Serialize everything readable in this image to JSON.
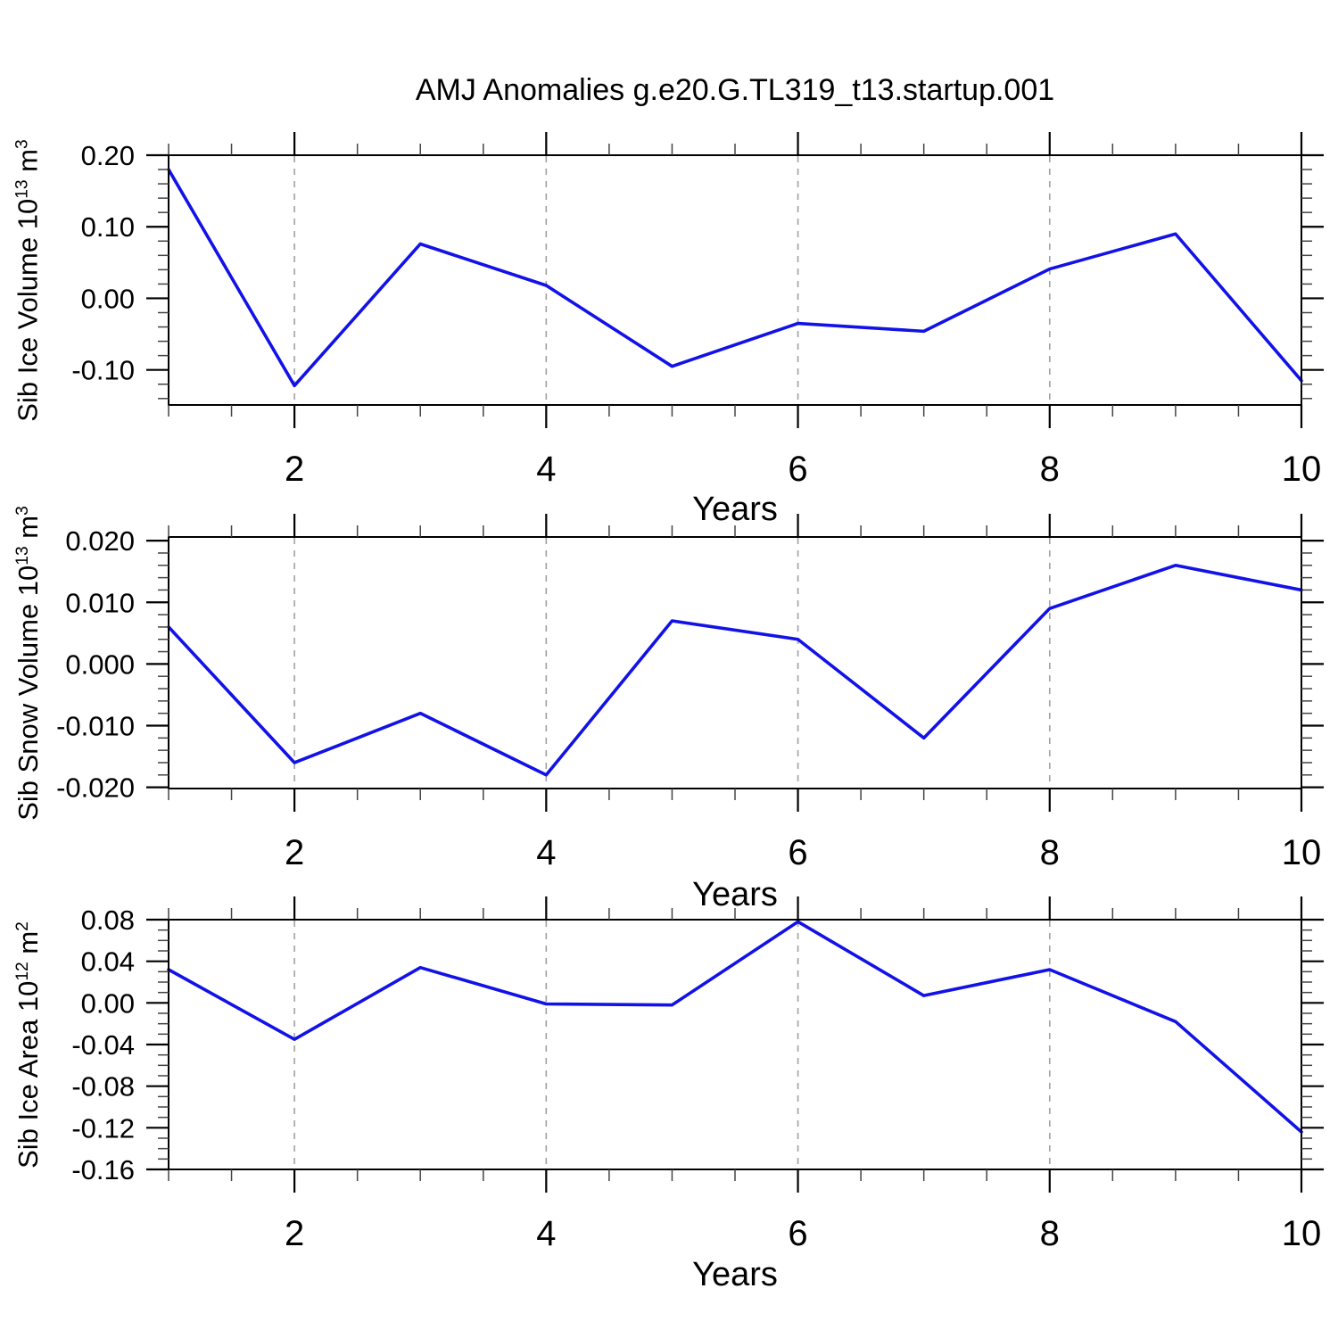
{
  "title": "AMJ Anomalies g.e20.G.TL319_t13.startup.001",
  "colors": {
    "line": "#1212e8",
    "grid": "#a0a0a0",
    "axis": "#000000",
    "minor_tick": "#444444",
    "text": "#000000"
  },
  "chart_data": [
    {
      "type": "line",
      "panel": "top",
      "ylabel": "Sib Ice Volume 10^13 m^3",
      "ylabel_parts": {
        "base": "Sib Ice Volume 10",
        "sup1": "13",
        "mid": " m",
        "sup2": "3"
      },
      "xlabel": "Years",
      "x": [
        1,
        2,
        3,
        4,
        5,
        6,
        7,
        8,
        9,
        10
      ],
      "values": [
        0.18,
        -0.122,
        0.076,
        0.018,
        -0.095,
        -0.035,
        -0.046,
        0.041,
        0.09,
        -0.115
      ],
      "xlim": [
        1,
        10
      ],
      "ylim": [
        -0.149,
        0.2
      ],
      "yticks": [
        {
          "v": 0.2,
          "label": "0.20"
        },
        {
          "v": 0.1,
          "label": "0.10"
        },
        {
          "v": 0.0,
          "label": "0.00"
        },
        {
          "v": -0.1,
          "label": "-0.10"
        }
      ],
      "yminor_step": 0.02,
      "xticks": [
        {
          "v": 2,
          "label": "2"
        },
        {
          "v": 4,
          "label": "4"
        },
        {
          "v": 6,
          "label": "6"
        },
        {
          "v": 8,
          "label": "8"
        },
        {
          "v": 10,
          "label": "10"
        }
      ],
      "xminor_step": 0.5,
      "grid_x": [
        2,
        4,
        6,
        8
      ],
      "grid": "vertical-dashed",
      "legend": "none"
    },
    {
      "type": "line",
      "panel": "middle",
      "ylabel": "Sib Snow Volume 10^13 m^3",
      "ylabel_parts": {
        "base": "Sib Snow Volume 10",
        "sup1": "13",
        "mid": " m",
        "sup2": "3"
      },
      "xlabel": "Years",
      "x": [
        1,
        2,
        3,
        4,
        5,
        6,
        7,
        8,
        9,
        10
      ],
      "values": [
        0.006,
        -0.016,
        -0.008,
        -0.018,
        0.007,
        0.004,
        -0.012,
        0.009,
        0.016,
        0.012
      ],
      "xlim": [
        1,
        10
      ],
      "ylim": [
        -0.0202,
        0.0206
      ],
      "yticks": [
        {
          "v": 0.02,
          "label": "0.020"
        },
        {
          "v": 0.01,
          "label": "0.010"
        },
        {
          "v": 0.0,
          "label": "0.000"
        },
        {
          "v": -0.01,
          "label": "-0.010"
        },
        {
          "v": -0.02,
          "label": "-0.020"
        }
      ],
      "yminor_step": 0.002,
      "xticks": [
        {
          "v": 2,
          "label": "2"
        },
        {
          "v": 4,
          "label": "4"
        },
        {
          "v": 6,
          "label": "6"
        },
        {
          "v": 8,
          "label": "8"
        },
        {
          "v": 10,
          "label": "10"
        }
      ],
      "xminor_step": 0.5,
      "grid_x": [
        2,
        4,
        6,
        8
      ],
      "grid": "vertical-dashed",
      "legend": "none"
    },
    {
      "type": "line",
      "panel": "bottom",
      "ylabel": "Sib Ice Area 10^12 m^2",
      "ylabel_parts": {
        "base": "Sib Ice Area 10",
        "sup1": "12",
        "mid": " m",
        "sup2": "2"
      },
      "xlabel": "Years",
      "x": [
        1,
        2,
        3,
        4,
        5,
        6,
        7,
        8,
        9,
        10
      ],
      "values": [
        0.032,
        -0.035,
        0.034,
        -0.001,
        -0.002,
        0.078,
        0.007,
        0.032,
        -0.018,
        -0.124
      ],
      "xlim": [
        1,
        10
      ],
      "ylim": [
        -0.16,
        0.08
      ],
      "yticks": [
        {
          "v": 0.08,
          "label": "0.08"
        },
        {
          "v": 0.04,
          "label": "0.04"
        },
        {
          "v": 0.0,
          "label": "0.00"
        },
        {
          "v": -0.04,
          "label": "-0.04"
        },
        {
          "v": -0.08,
          "label": "-0.08"
        },
        {
          "v": -0.12,
          "label": "-0.12"
        },
        {
          "v": -0.16,
          "label": "-0.16"
        }
      ],
      "yminor_step": 0.01,
      "xticks": [
        {
          "v": 2,
          "label": "2"
        },
        {
          "v": 4,
          "label": "4"
        },
        {
          "v": 6,
          "label": "6"
        },
        {
          "v": 8,
          "label": "8"
        },
        {
          "v": 10,
          "label": "10"
        }
      ],
      "xminor_step": 0.5,
      "grid_x": [
        2,
        4,
        6,
        8
      ],
      "grid": "vertical-dashed",
      "legend": "none"
    }
  ]
}
